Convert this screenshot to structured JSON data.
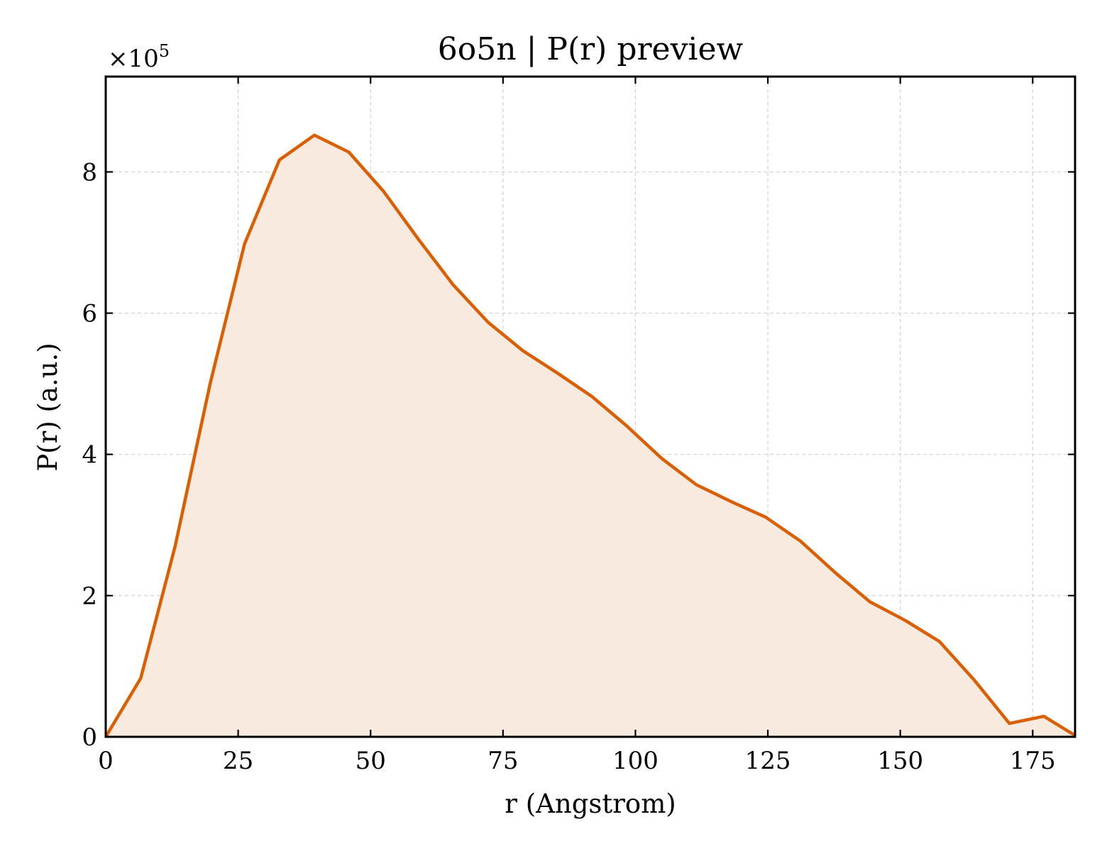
{
  "chart_data": {
    "type": "area",
    "title": "6o5n | P(r) preview",
    "xlabel": "r (Angstrom)",
    "ylabel": "P(r) (a.u.)",
    "y_multiplier_label": "×10",
    "y_multiplier_exponent": "5",
    "xlim": [
      0,
      183
    ],
    "ylim": [
      0,
      9.35
    ],
    "x_ticks": [
      0,
      25,
      50,
      75,
      100,
      125,
      150,
      175
    ],
    "y_ticks": [
      0,
      2,
      4,
      6,
      8
    ],
    "grid": true,
    "line_color": "#d95f02",
    "fill_color": "#f9eadf",
    "series": [
      {
        "x": [
          0,
          6.6,
          13.1,
          19.7,
          26.2,
          32.8,
          39.4,
          45.9,
          52.5,
          59.0,
          65.6,
          72.2,
          78.7,
          85.3,
          91.8,
          98.4,
          105.0,
          111.5,
          118.1,
          124.6,
          131.2,
          137.8,
          144.3,
          150.9,
          157.4,
          164.0,
          170.6,
          177.1,
          183.0
        ],
        "values": [
          0,
          0.83,
          2.7,
          5.0,
          6.98,
          8.17,
          8.52,
          8.28,
          7.72,
          7.05,
          6.4,
          5.87,
          5.47,
          5.15,
          4.82,
          4.4,
          3.94,
          3.57,
          3.33,
          3.11,
          2.77,
          2.32,
          1.91,
          1.65,
          1.35,
          0.8,
          0.19,
          0.29,
          0.02
        ]
      }
    ]
  }
}
